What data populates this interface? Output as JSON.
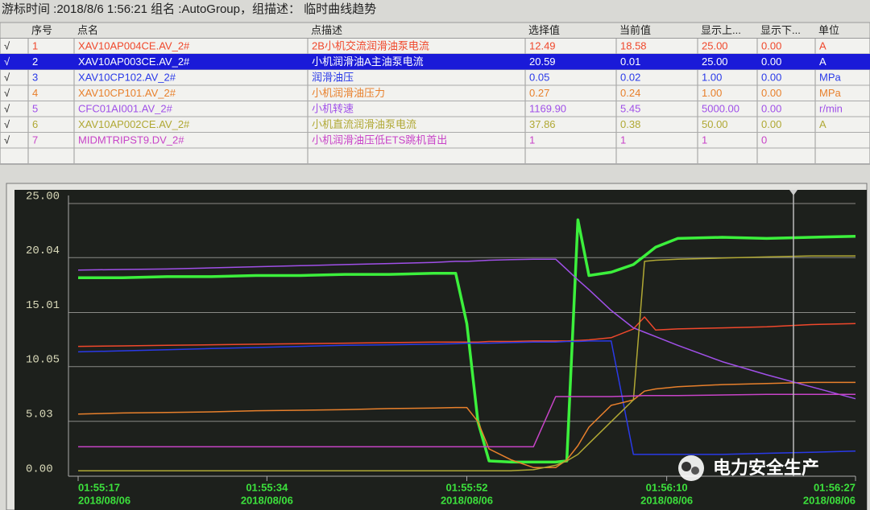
{
  "header": {
    "title": "游标时间 :2018/8/6 1:56:21   组名 :AutoGroup，组描述： 临时曲线趋势"
  },
  "table": {
    "columns": [
      "序号",
      "点名",
      "点描述",
      "选择值",
      "当前值",
      "显示上...",
      "显示下...",
      "单位"
    ],
    "rows": [
      [
        "√",
        "1",
        "XAV10AP004CE.AV_2#",
        "2B小机交流润滑油泵电流",
        "12.49",
        "18.58",
        "25.00",
        "0.00",
        "A"
      ],
      [
        "√",
        "2",
        "XAV10AP003CE.AV_2#",
        "小机润滑油A主油泵电流",
        "20.59",
        "0.01",
        "25.00",
        "0.00",
        "A"
      ],
      [
        "√",
        "3",
        "XAV10CP102.AV_2#",
        "润滑油压",
        "0.05",
        "0.02",
        "1.00",
        "0.00",
        "MPa"
      ],
      [
        "√",
        "4",
        "XAV10CP101.AV_2#",
        "小机润滑油压力",
        "0.27",
        "0.24",
        "1.00",
        "0.00",
        "MPa"
      ],
      [
        "√",
        "5",
        "CFC01AI001.AV_2#",
        "小机转速",
        "1169.90",
        "5.45",
        "5000.00",
        "0.00",
        "r/min"
      ],
      [
        "√",
        "6",
        "XAV10AP002CE.AV_2#",
        "小机直流润滑油泵电流",
        "37.86",
        "0.38",
        "50.00",
        "0.00",
        "A"
      ],
      [
        "√",
        "7",
        "MIDMTRIPST9.DV_2#",
        "小机润滑油压低ETS跳机首出",
        "1",
        "1",
        "1",
        "0"
      ]
    ],
    "selected_row": 1
  },
  "watermark": "电力安全生产",
  "chart_data": {
    "type": "line",
    "x": [
      "01:55:17",
      "01:55:21",
      "01:55:25",
      "01:55:29",
      "01:55:33",
      "01:55:37",
      "01:55:41",
      "01:55:45",
      "01:55:49",
      "01:55:51",
      "01:55:52",
      "01:55:53",
      "01:55:54",
      "01:55:56",
      "01:55:58",
      "01:56:00",
      "01:56:01",
      "01:56:02",
      "01:56:03",
      "01:56:05",
      "01:56:07",
      "01:56:08",
      "01:56:09",
      "01:56:11",
      "01:56:15",
      "01:56:19",
      "01:56:23",
      "01:56:27"
    ],
    "xlim": [
      "01:55:17",
      "01:56:27"
    ],
    "xticks": [
      "01:55:17",
      "01:55:34",
      "01:55:52",
      "01:56:10",
      "01:56:27"
    ],
    "xtick_dates": [
      "2018/08/06",
      "2018/08/06",
      "2018/08/06",
      "2018/08/06",
      "2018/08/06"
    ],
    "ylim": [
      0,
      25
    ],
    "yticks": [
      {
        "value": 0,
        "label": "0.00"
      },
      5.03,
      10.05,
      15.01,
      20.04,
      {
        "value": 25,
        "label": "25.00"
      }
    ],
    "grid": true,
    "series": [
      {
        "color": "#f0482c",
        "values": [
          11.9,
          11.95,
          12.0,
          12.05,
          12.1,
          12.15,
          12.2,
          12.25,
          12.3,
          12.3,
          12.3,
          12.3,
          12.35,
          12.35,
          12.4,
          12.4,
          12.4,
          12.45,
          12.5,
          12.7,
          13.5,
          14.6,
          13.4,
          13.5,
          13.6,
          13.7,
          13.9,
          14.0
        ]
      },
      {
        "color": "#3cf03c",
        "values": [
          18.2,
          18.2,
          18.3,
          18.3,
          18.4,
          18.4,
          18.5,
          18.5,
          18.6,
          18.6,
          14.0,
          5.0,
          1.4,
          1.3,
          1.3,
          1.3,
          1.4,
          23.5,
          18.4,
          18.7,
          19.4,
          20.2,
          21.0,
          21.8,
          21.9,
          21.8,
          21.9,
          22.0
        ]
      },
      {
        "color": "#2a3ae8",
        "values": [
          11.4,
          11.5,
          11.6,
          11.7,
          11.8,
          11.9,
          12.0,
          12.05,
          12.1,
          12.15,
          12.2,
          12.2,
          12.2,
          12.25,
          12.3,
          12.3,
          12.35,
          12.35,
          12.4,
          12.4,
          2.0,
          2.0,
          2.0,
          2.0,
          2.0,
          2.1,
          2.2,
          2.3
        ]
      },
      {
        "color": "#e8802c",
        "values": [
          5.7,
          5.8,
          5.85,
          5.9,
          6.0,
          6.05,
          6.1,
          6.2,
          6.25,
          6.3,
          6.3,
          5.0,
          2.5,
          1.5,
          0.8,
          0.8,
          1.5,
          2.8,
          4.5,
          6.5,
          7.0,
          7.8,
          8.0,
          8.2,
          8.4,
          8.5,
          8.6,
          8.6
        ]
      },
      {
        "color": "#a050e8",
        "values": [
          18.9,
          18.95,
          19.0,
          19.1,
          19.2,
          19.3,
          19.4,
          19.5,
          19.6,
          19.7,
          19.7,
          19.75,
          19.8,
          19.85,
          19.9,
          19.9,
          18.96,
          18.0,
          17.1,
          15.2,
          13.6,
          13.2,
          12.8,
          12.0,
          10.5,
          9.3,
          8.2,
          7.1
        ]
      },
      {
        "color": "#b0a834",
        "values": [
          0.5,
          0.5,
          0.5,
          0.5,
          0.5,
          0.5,
          0.5,
          0.5,
          0.5,
          0.5,
          0.5,
          0.5,
          0.5,
          0.5,
          0.6,
          1.0,
          1.4,
          2.0,
          3.0,
          5.0,
          7.0,
          19.7,
          19.8,
          19.9,
          20.0,
          20.1,
          20.2,
          20.2
        ]
      },
      {
        "color": "#c844c8",
        "values": [
          2.7,
          2.7,
          2.7,
          2.7,
          2.7,
          2.7,
          2.7,
          2.7,
          2.7,
          2.7,
          2.7,
          2.7,
          2.7,
          2.7,
          2.7,
          7.3,
          7.3,
          7.3,
          7.3,
          7.3,
          7.35,
          7.4,
          7.4,
          7.4,
          7.45,
          7.5,
          7.5,
          7.5
        ]
      }
    ]
  }
}
